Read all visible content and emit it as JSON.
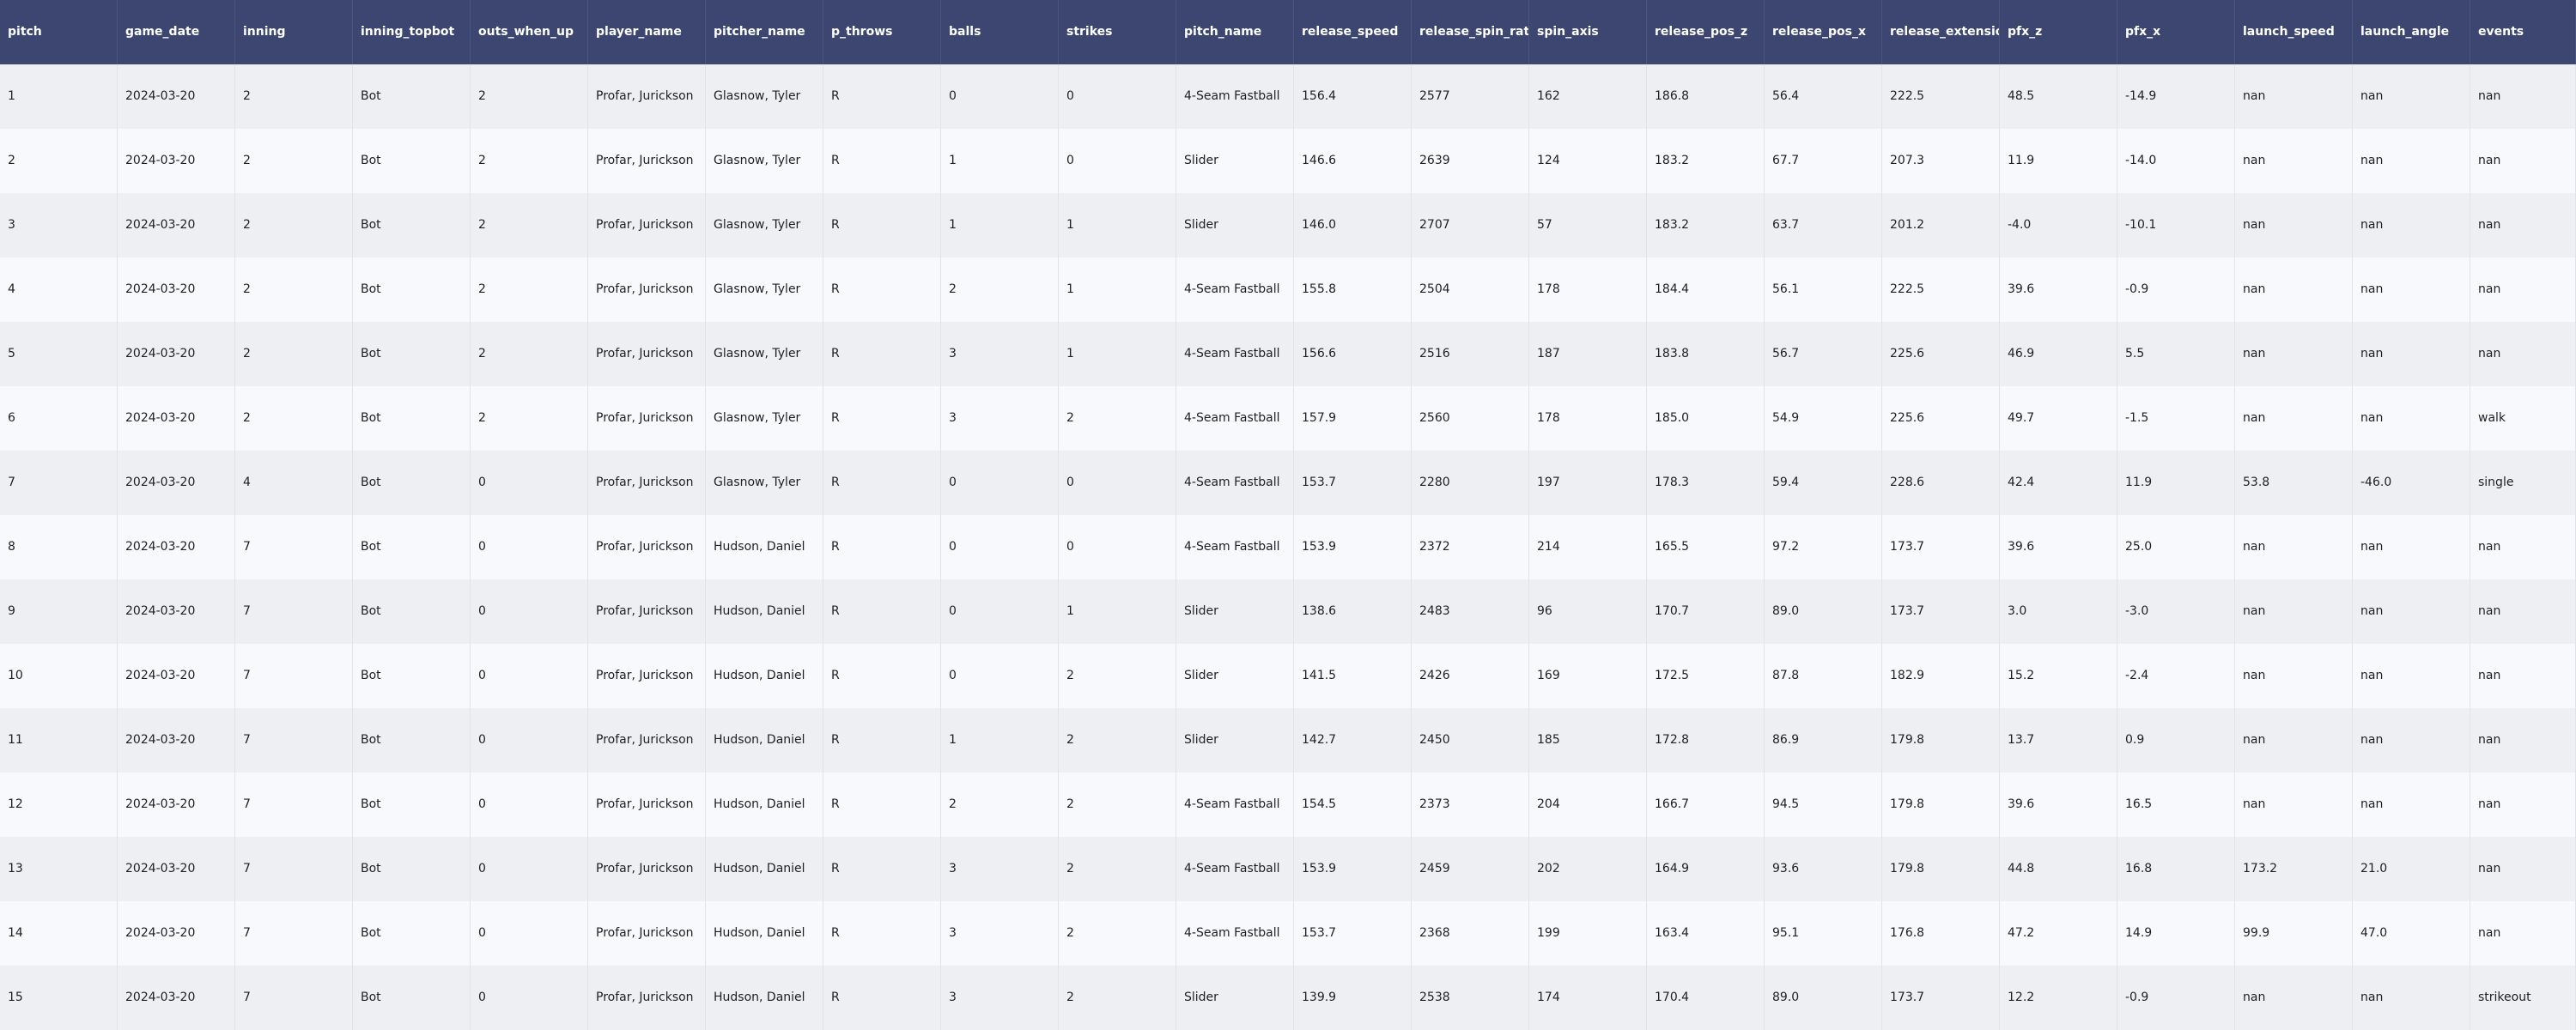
{
  "table": {
    "columns": [
      "pitch",
      "game_date",
      "inning",
      "inning_topbot",
      "outs_when_up",
      "player_name",
      "pitcher_name",
      "p_throws",
      "balls",
      "strikes",
      "pitch_name",
      "release_speed",
      "release_spin_rate",
      "spin_axis",
      "release_pos_z",
      "release_pos_x",
      "release_extension",
      "pfx_z",
      "pfx_x",
      "launch_speed",
      "launch_angle",
      "events"
    ],
    "rows": [
      [
        "1",
        "2024-03-20",
        "2",
        "Bot",
        "2",
        "Profar, Jurickson",
        "Glasnow, Tyler",
        "R",
        "0",
        "0",
        "4-Seam Fastball",
        "156.4",
        "2577",
        "162",
        "186.8",
        "56.4",
        "222.5",
        "48.5",
        "-14.9",
        "nan",
        "nan",
        "nan"
      ],
      [
        "2",
        "2024-03-20",
        "2",
        "Bot",
        "2",
        "Profar, Jurickson",
        "Glasnow, Tyler",
        "R",
        "1",
        "0",
        "Slider",
        "146.6",
        "2639",
        "124",
        "183.2",
        "67.7",
        "207.3",
        "11.9",
        "-14.0",
        "nan",
        "nan",
        "nan"
      ],
      [
        "3",
        "2024-03-20",
        "2",
        "Bot",
        "2",
        "Profar, Jurickson",
        "Glasnow, Tyler",
        "R",
        "1",
        "1",
        "Slider",
        "146.0",
        "2707",
        "57",
        "183.2",
        "63.7",
        "201.2",
        "-4.0",
        "-10.1",
        "nan",
        "nan",
        "nan"
      ],
      [
        "4",
        "2024-03-20",
        "2",
        "Bot",
        "2",
        "Profar, Jurickson",
        "Glasnow, Tyler",
        "R",
        "2",
        "1",
        "4-Seam Fastball",
        "155.8",
        "2504",
        "178",
        "184.4",
        "56.1",
        "222.5",
        "39.6",
        "-0.9",
        "nan",
        "nan",
        "nan"
      ],
      [
        "5",
        "2024-03-20",
        "2",
        "Bot",
        "2",
        "Profar, Jurickson",
        "Glasnow, Tyler",
        "R",
        "3",
        "1",
        "4-Seam Fastball",
        "156.6",
        "2516",
        "187",
        "183.8",
        "56.7",
        "225.6",
        "46.9",
        "5.5",
        "nan",
        "nan",
        "nan"
      ],
      [
        "6",
        "2024-03-20",
        "2",
        "Bot",
        "2",
        "Profar, Jurickson",
        "Glasnow, Tyler",
        "R",
        "3",
        "2",
        "4-Seam Fastball",
        "157.9",
        "2560",
        "178",
        "185.0",
        "54.9",
        "225.6",
        "49.7",
        "-1.5",
        "nan",
        "nan",
        "walk"
      ],
      [
        "7",
        "2024-03-20",
        "4",
        "Bot",
        "0",
        "Profar, Jurickson",
        "Glasnow, Tyler",
        "R",
        "0",
        "0",
        "4-Seam Fastball",
        "153.7",
        "2280",
        "197",
        "178.3",
        "59.4",
        "228.6",
        "42.4",
        "11.9",
        "53.8",
        "-46.0",
        "single"
      ],
      [
        "8",
        "2024-03-20",
        "7",
        "Bot",
        "0",
        "Profar, Jurickson",
        "Hudson, Daniel",
        "R",
        "0",
        "0",
        "4-Seam Fastball",
        "153.9",
        "2372",
        "214",
        "165.5",
        "97.2",
        "173.7",
        "39.6",
        "25.0",
        "nan",
        "nan",
        "nan"
      ],
      [
        "9",
        "2024-03-20",
        "7",
        "Bot",
        "0",
        "Profar, Jurickson",
        "Hudson, Daniel",
        "R",
        "0",
        "1",
        "Slider",
        "138.6",
        "2483",
        "96",
        "170.7",
        "89.0",
        "173.7",
        "3.0",
        "-3.0",
        "nan",
        "nan",
        "nan"
      ],
      [
        "10",
        "2024-03-20",
        "7",
        "Bot",
        "0",
        "Profar, Jurickson",
        "Hudson, Daniel",
        "R",
        "0",
        "2",
        "Slider",
        "141.5",
        "2426",
        "169",
        "172.5",
        "87.8",
        "182.9",
        "15.2",
        "-2.4",
        "nan",
        "nan",
        "nan"
      ],
      [
        "11",
        "2024-03-20",
        "7",
        "Bot",
        "0",
        "Profar, Jurickson",
        "Hudson, Daniel",
        "R",
        "1",
        "2",
        "Slider",
        "142.7",
        "2450",
        "185",
        "172.8",
        "86.9",
        "179.8",
        "13.7",
        "0.9",
        "nan",
        "nan",
        "nan"
      ],
      [
        "12",
        "2024-03-20",
        "7",
        "Bot",
        "0",
        "Profar, Jurickson",
        "Hudson, Daniel",
        "R",
        "2",
        "2",
        "4-Seam Fastball",
        "154.5",
        "2373",
        "204",
        "166.7",
        "94.5",
        "179.8",
        "39.6",
        "16.5",
        "nan",
        "nan",
        "nan"
      ],
      [
        "13",
        "2024-03-20",
        "7",
        "Bot",
        "0",
        "Profar, Jurickson",
        "Hudson, Daniel",
        "R",
        "3",
        "2",
        "4-Seam Fastball",
        "153.9",
        "2459",
        "202",
        "164.9",
        "93.6",
        "179.8",
        "44.8",
        "16.8",
        "173.2",
        "21.0",
        "nan"
      ],
      [
        "14",
        "2024-03-20",
        "7",
        "Bot",
        "0",
        "Profar, Jurickson",
        "Hudson, Daniel",
        "R",
        "3",
        "2",
        "4-Seam Fastball",
        "153.7",
        "2368",
        "199",
        "163.4",
        "95.1",
        "176.8",
        "47.2",
        "14.9",
        "99.9",
        "47.0",
        "nan"
      ],
      [
        "15",
        "2024-03-20",
        "7",
        "Bot",
        "0",
        "Profar, Jurickson",
        "Hudson, Daniel",
        "R",
        "3",
        "2",
        "Slider",
        "139.9",
        "2538",
        "174",
        "170.4",
        "89.0",
        "173.7",
        "12.2",
        "-0.9",
        "nan",
        "nan",
        "strikeout"
      ]
    ]
  },
  "colors": {
    "header_bg": "#3c4670",
    "row_odd": "#eeeff3",
    "row_even": "#f8f9fd",
    "text": "#1f1f1f",
    "header_text": "#ffffff"
  }
}
